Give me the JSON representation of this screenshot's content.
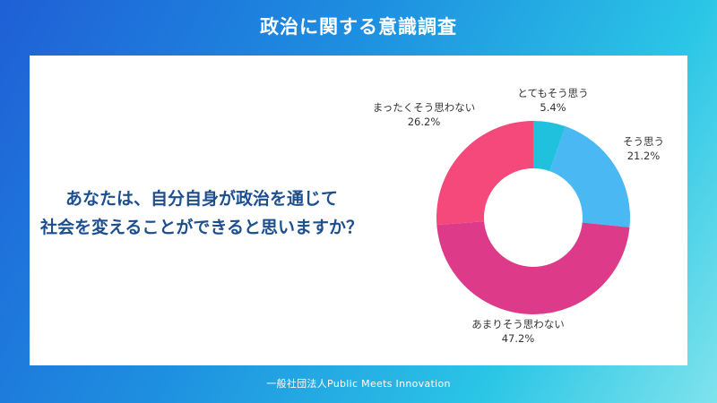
{
  "header": {
    "title": "政治に関する意識調査"
  },
  "question": {
    "line1": "あなたは、自分自身が政治を通じて",
    "line2": "社会を変えることができると思いますか？"
  },
  "footer": {
    "organization": "一般社団法人Public Meets Innovation"
  },
  "colors": {
    "background_start": "#1f5fd6",
    "background_end": "#7fe3ec",
    "question_text": "#1d4f8f"
  },
  "chart_data": {
    "type": "pie",
    "variant": "donut",
    "title": "政治に関する意識調査",
    "start_angle": "top, clockwise",
    "slices": [
      {
        "label": "とてもそう思う",
        "value": 5.4,
        "display": "5.4%",
        "color": "#1fc1dc"
      },
      {
        "label": "そう思う",
        "value": 21.2,
        "display": "21.2%",
        "color": "#4ab8f2"
      },
      {
        "label": "あまりそう思わない",
        "value": 47.2,
        "display": "47.2%",
        "color": "#de3a8a"
      },
      {
        "label": "まったくそう思わない",
        "value": 26.2,
        "display": "26.2%",
        "color": "#f4497a"
      }
    ]
  }
}
